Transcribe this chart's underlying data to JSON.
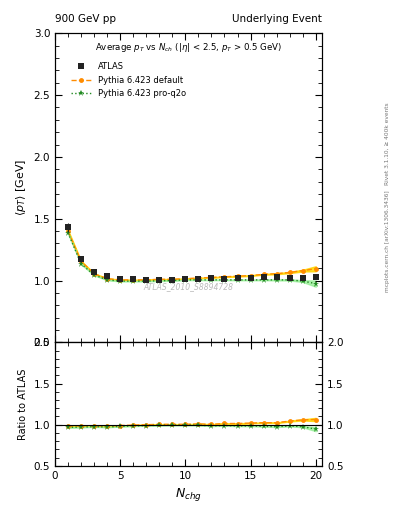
{
  "title_left": "900 GeV pp",
  "title_right": "Underlying Event",
  "plot_title": "Average $p_T$ vs $N_{ch}$ ($|\\eta|$ < 2.5, $p_T$ > 0.5 GeV)",
  "xlabel": "$N_{chg}$",
  "ylabel_main": "$\\langle p_T \\rangle$ [GeV]",
  "ylabel_ratio": "Ratio to ATLAS",
  "watermark": "ATLAS_2010_S8894728",
  "atlas_x": [
    1,
    2,
    3,
    4,
    5,
    6,
    7,
    8,
    9,
    10,
    11,
    12,
    13,
    14,
    15,
    16,
    17,
    18,
    19,
    20
  ],
  "atlas_y": [
    1.43,
    1.17,
    1.07,
    1.035,
    1.015,
    1.01,
    1.005,
    1.005,
    1.005,
    1.01,
    1.01,
    1.02,
    1.015,
    1.02,
    1.02,
    1.025,
    1.03,
    1.02,
    1.02,
    1.03
  ],
  "atlas_yerr": [
    0.035,
    0.018,
    0.012,
    0.01,
    0.008,
    0.007,
    0.007,
    0.007,
    0.007,
    0.007,
    0.007,
    0.008,
    0.008,
    0.008,
    0.008,
    0.009,
    0.009,
    0.012,
    0.015,
    0.02
  ],
  "pythia_default_x": [
    1,
    2,
    3,
    4,
    5,
    6,
    7,
    8,
    9,
    10,
    11,
    12,
    13,
    14,
    15,
    16,
    17,
    18,
    19,
    20
  ],
  "pythia_default_y": [
    1.4,
    1.155,
    1.055,
    1.015,
    1.005,
    1.005,
    1.005,
    1.01,
    1.01,
    1.015,
    1.02,
    1.025,
    1.03,
    1.035,
    1.04,
    1.05,
    1.055,
    1.065,
    1.08,
    1.095
  ],
  "pythia_default_band": [
    0.008,
    0.004,
    0.003,
    0.003,
    0.002,
    0.002,
    0.002,
    0.002,
    0.002,
    0.002,
    0.002,
    0.002,
    0.002,
    0.003,
    0.003,
    0.003,
    0.004,
    0.005,
    0.007,
    0.02
  ],
  "pythia_proq2o_x": [
    1,
    2,
    3,
    4,
    5,
    6,
    7,
    8,
    9,
    10,
    11,
    12,
    13,
    14,
    15,
    16,
    17,
    18,
    19,
    20
  ],
  "pythia_proq2o_y": [
    1.385,
    1.135,
    1.045,
    1.005,
    0.995,
    0.995,
    0.995,
    0.998,
    1.0,
    1.005,
    1.005,
    1.005,
    1.005,
    1.005,
    1.005,
    1.005,
    1.005,
    1.005,
    0.995,
    0.975
  ],
  "pythia_proq2o_band": [
    0.008,
    0.004,
    0.003,
    0.003,
    0.002,
    0.002,
    0.002,
    0.002,
    0.002,
    0.002,
    0.002,
    0.002,
    0.002,
    0.003,
    0.003,
    0.003,
    0.004,
    0.005,
    0.007,
    0.025
  ],
  "ylim_main": [
    0.5,
    3.0
  ],
  "ylim_ratio": [
    0.5,
    2.0
  ],
  "xlim": [
    0,
    20.5
  ],
  "yticks_main": [
    0.5,
    1.0,
    1.5,
    2.0,
    2.5,
    3.0
  ],
  "yticks_ratio": [
    0.5,
    1.0,
    1.5,
    2.0
  ],
  "xticks": [
    0,
    5,
    10,
    15,
    20
  ],
  "color_atlas": "#222222",
  "color_default": "#FF8C00",
  "color_proq2o": "#228B22",
  "color_default_band": "#FFD700",
  "color_proq2o_band": "#90EE90",
  "bg_color": "#ffffff"
}
